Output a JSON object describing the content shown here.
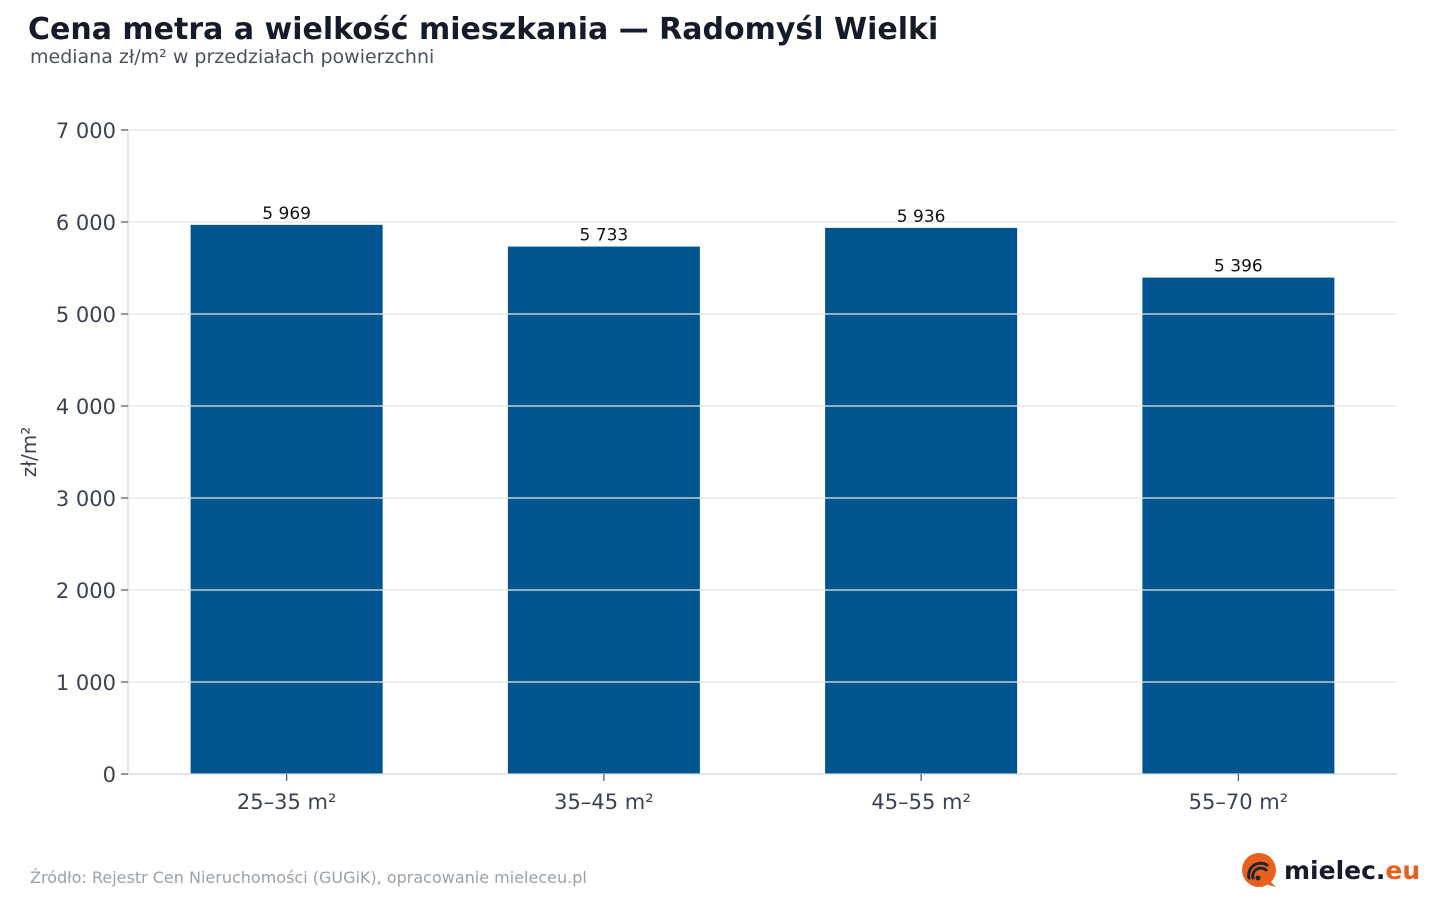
{
  "header": {
    "title": "Cena metra a wielkość mieszkania — Radomyśl Wielki",
    "subtitle": "mediana zł/m² w przedziałach powierzchni"
  },
  "footer": {
    "source": "Źródło: Rejestr Cen Nieruchomości (GUGiK), opracowanie mieleceu.pl",
    "logo_name": "mielec.",
    "logo_domain": "eu"
  },
  "colors": {
    "bar": "#00558f",
    "grid": "#e3e5e8",
    "axis_text": "#3c4350",
    "label_text": "#111111",
    "logo_accent": "#e8601c"
  },
  "chart_data": {
    "type": "bar",
    "title": "Cena metra a wielkość mieszkania — Radomyśl Wielki",
    "subtitle": "mediana zł/m² w przedziałach powierzchni",
    "xlabel": "",
    "ylabel": "zł/m²",
    "categories": [
      "25–35 m²",
      "35–45 m²",
      "45–55 m²",
      "55–70 m²"
    ],
    "values": [
      5969,
      5733,
      5936,
      5396
    ],
    "value_labels": [
      "5 969",
      "5 733",
      "5 936",
      "5 396"
    ],
    "ylim": [
      0,
      7000
    ],
    "yticks": [
      0,
      1000,
      2000,
      3000,
      4000,
      5000,
      6000,
      7000
    ],
    "ytick_labels": [
      "0",
      "1 000",
      "2 000",
      "3 000",
      "4 000",
      "5 000",
      "6 000",
      "7 000"
    ],
    "grid": true,
    "legend": "none"
  }
}
